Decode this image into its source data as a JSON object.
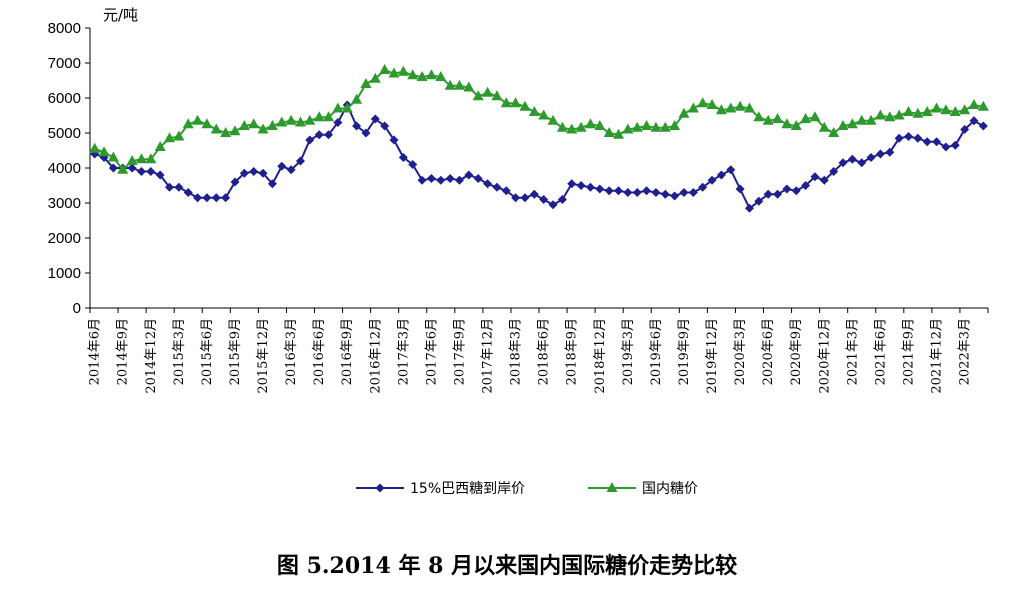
{
  "caption": "图 5.2014 年 8 月以来国内国际糖价走势比较",
  "chart_data": {
    "type": "line",
    "title": "",
    "ylabel": "元/吨",
    "ylim": [
      0,
      8000
    ],
    "yticks": [
      0,
      1000,
      2000,
      3000,
      4000,
      5000,
      6000,
      7000,
      8000
    ],
    "x_tick_labels": [
      "2014年6月",
      "2014年9月",
      "2014年12月",
      "2015年3月",
      "2015年6月",
      "2015年9月",
      "2015年12月",
      "2016年3月",
      "2016年6月",
      "2016年9月",
      "2016年12月",
      "2017年3月",
      "2017年6月",
      "2017年9月",
      "2017年12月",
      "2018年3月",
      "2018年6月",
      "2018年9月",
      "2018年12月",
      "2019年3月",
      "2019年6月",
      "2019年9月",
      "2019年12月",
      "2020年3月",
      "2020年6月",
      "2020年9月",
      "2020年12月",
      "2021年3月",
      "2021年6月",
      "2021年9月",
      "2021年12月",
      "2022年3月"
    ],
    "grid": false,
    "legend_position": "bottom",
    "series": [
      {
        "name": "15%巴西糖到岸价",
        "color": "#1f1f8f",
        "marker": "diamond",
        "values": [
          4400,
          4300,
          4000,
          4000,
          4000,
          3900,
          3900,
          3800,
          3450,
          3450,
          3300,
          3150,
          3150,
          3150,
          3150,
          3600,
          3850,
          3900,
          3850,
          3550,
          4050,
          3950,
          4200,
          4800,
          4950,
          4950,
          5300,
          5800,
          5200,
          5000,
          5400,
          5200,
          4800,
          4300,
          4100,
          3650,
          3700,
          3650,
          3700,
          3650,
          3800,
          3700,
          3550,
          3450,
          3350,
          3150,
          3150,
          3250,
          3100,
          2950,
          3100,
          3550,
          3500,
          3450,
          3400,
          3350,
          3350,
          3300,
          3300,
          3350,
          3300,
          3250,
          3200,
          3300,
          3300,
          3450,
          3650,
          3800,
          3950,
          3400,
          2850,
          3050,
          3250,
          3250,
          3400,
          3350,
          3500,
          3750,
          3650,
          3900,
          4150,
          4250,
          4150,
          4300,
          4400,
          4450,
          4850,
          4900,
          4850,
          4750,
          4750,
          4600,
          4650,
          5100,
          5350,
          5200
        ]
      },
      {
        "name": "国内糖价",
        "color": "#2e9a2e",
        "marker": "triangle",
        "values": [
          4550,
          4450,
          4300,
          3950,
          4200,
          4250,
          4250,
          4600,
          4850,
          4900,
          5250,
          5350,
          5250,
          5100,
          5000,
          5050,
          5200,
          5250,
          5100,
          5200,
          5300,
          5350,
          5300,
          5350,
          5450,
          5450,
          5700,
          5700,
          5950,
          6400,
          6550,
          6800,
          6700,
          6750,
          6650,
          6600,
          6650,
          6600,
          6350,
          6350,
          6300,
          6050,
          6150,
          6050,
          5850,
          5850,
          5750,
          5600,
          5500,
          5350,
          5150,
          5100,
          5150,
          5250,
          5200,
          5000,
          4950,
          5100,
          5150,
          5200,
          5150,
          5150,
          5200,
          5550,
          5700,
          5850,
          5800,
          5650,
          5700,
          5750,
          5700,
          5450,
          5350,
          5400,
          5250,
          5200,
          5400,
          5450,
          5150,
          5000,
          5200,
          5250,
          5350,
          5350,
          5500,
          5450,
          5500,
          5600,
          5550,
          5600,
          5700,
          5650,
          5600,
          5650,
          5800,
          5750
        ]
      }
    ]
  }
}
